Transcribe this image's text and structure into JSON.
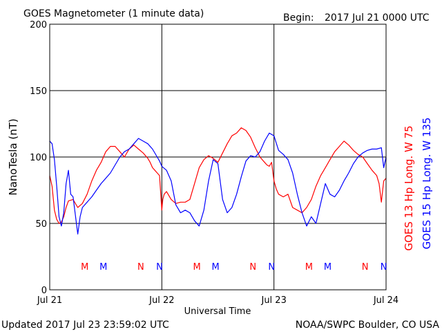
{
  "header": {
    "title": "GOES Magnetometer (1 minute data)",
    "begin_label": "Begin:",
    "begin_value": "2017 Jul 21 0000 UTC"
  },
  "footer": {
    "updated": "Updated 2017 Jul 23 23:59:02 UTC",
    "credit": "NOAA/SWPC Boulder, CO USA"
  },
  "colors": {
    "goes13": "#ff0000",
    "goes15": "#0000ff",
    "axes": "#000000"
  },
  "chart_data": {
    "type": "line",
    "title": "GOES Magnetometer (1 minute data)",
    "xlabel": "Universal Time",
    "ylabel": "NanoTesla (nT)",
    "xlim": [
      0,
      72
    ],
    "ylim": [
      0,
      200
    ],
    "yticks": [
      0,
      50,
      100,
      150,
      200
    ],
    "x_ticks": [
      {
        "x": 0,
        "label": "Jul 21"
      },
      {
        "x": 24,
        "label": "Jul 22"
      },
      {
        "x": 48,
        "label": "Jul 23"
      },
      {
        "x": 72,
        "label": "Jul 24"
      }
    ],
    "x_unit": "hours since 2017 Jul 21 0000 UTC",
    "grid": true,
    "legend_position": "right, vertical",
    "series": [
      {
        "name": "GOES 13 Hp",
        "legend_label": "GOES 13 Hp  Long. W 75",
        "color": "#ff0000",
        "x": [
          0,
          0.5,
          1,
          1.5,
          2,
          2.5,
          3,
          3.5,
          4,
          5,
          6,
          7,
          8,
          9,
          10,
          11,
          12,
          13,
          14,
          15,
          16,
          17,
          18,
          19,
          20,
          21,
          21.5,
          22,
          22.5,
          23,
          23.5,
          24,
          24.2,
          24.5,
          25,
          26,
          27,
          28,
          29,
          30,
          31,
          32,
          33,
          34,
          35,
          36,
          37,
          38,
          39,
          40,
          41,
          42,
          43,
          44,
          45,
          46,
          46.5,
          47,
          47.5,
          48,
          48.5,
          49,
          50,
          51,
          52,
          53,
          54,
          55,
          56,
          57,
          58,
          59,
          60,
          61,
          62,
          63,
          64,
          65,
          66,
          67,
          68,
          69,
          70,
          70.5,
          71,
          71.5,
          72
        ],
        "y": [
          86,
          78,
          60,
          53,
          50,
          51,
          55,
          62,
          67,
          68,
          62,
          65,
          72,
          82,
          90,
          96,
          104,
          108,
          108,
          104,
          100,
          106,
          109,
          106,
          103,
          99,
          96,
          92,
          90,
          88,
          86,
          60,
          68,
          72,
          74,
          68,
          65,
          66,
          66,
          68,
          80,
          92,
          98,
          101,
          99,
          96,
          103,
          110,
          116,
          118,
          122,
          120,
          115,
          107,
          100,
          96,
          94,
          93,
          96,
          82,
          76,
          72,
          70,
          72,
          62,
          60,
          58,
          62,
          68,
          78,
          86,
          92,
          98,
          104,
          108,
          112,
          109,
          105,
          102,
          100,
          95,
          90,
          86,
          80,
          66,
          82,
          84
        ]
      },
      {
        "name": "GOES 15 Hp",
        "legend_label": "GOES 15 Hp  Long. W 135",
        "color": "#0000ff",
        "x": [
          0,
          0.5,
          1,
          1.5,
          2,
          2.5,
          3,
          3.5,
          4,
          4.5,
          5,
          5.5,
          6,
          6.5,
          7,
          8,
          9,
          10,
          11,
          12,
          13,
          14,
          15,
          16,
          17,
          18,
          19,
          20,
          21,
          22,
          23,
          23.5,
          24,
          25,
          26,
          27,
          28,
          29,
          30,
          31,
          32,
          33,
          34,
          35,
          36,
          37,
          38,
          39,
          40,
          41,
          42,
          43,
          44,
          45,
          46,
          47,
          48,
          49,
          50,
          51,
          52,
          53,
          54,
          55,
          56,
          57,
          58,
          59,
          60,
          61,
          62,
          63,
          64,
          65,
          66,
          67,
          68,
          69,
          70,
          71,
          71.5,
          72
        ],
        "y": [
          112,
          110,
          98,
          78,
          55,
          48,
          58,
          80,
          90,
          72,
          70,
          56,
          42,
          55,
          62,
          66,
          70,
          75,
          80,
          84,
          88,
          94,
          100,
          104,
          106,
          110,
          114,
          112,
          110,
          106,
          100,
          97,
          93,
          90,
          82,
          64,
          58,
          60,
          58,
          52,
          48,
          60,
          82,
          98,
          95,
          68,
          58,
          62,
          72,
          85,
          97,
          101,
          100,
          104,
          112,
          118,
          116,
          105,
          102,
          98,
          88,
          72,
          58,
          48,
          55,
          50,
          65,
          80,
          72,
          70,
          75,
          82,
          88,
          95,
          100,
          103,
          105,
          106,
          106,
          107,
          92,
          100
        ]
      }
    ],
    "annotations": [
      {
        "x": 7.5,
        "label": "M",
        "series": "GOES 13 Hp"
      },
      {
        "x": 19.5,
        "label": "N",
        "series": "GOES 13 Hp"
      },
      {
        "x": 11.5,
        "label": "M",
        "series": "GOES 15 Hp"
      },
      {
        "x": 23.5,
        "label": "N",
        "series": "GOES 15 Hp"
      },
      {
        "x": 31.5,
        "label": "M",
        "series": "GOES 13 Hp"
      },
      {
        "x": 43.5,
        "label": "N",
        "series": "GOES 13 Hp"
      },
      {
        "x": 35.5,
        "label": "M",
        "series": "GOES 15 Hp"
      },
      {
        "x": 47.5,
        "label": "N",
        "series": "GOES 15 Hp"
      },
      {
        "x": 55.5,
        "label": "M",
        "series": "GOES 13 Hp"
      },
      {
        "x": 67.5,
        "label": "N",
        "series": "GOES 13 Hp"
      },
      {
        "x": 59.5,
        "label": "M",
        "series": "GOES 15 Hp"
      },
      {
        "x": 71.5,
        "label": "N",
        "series": "GOES 15 Hp"
      }
    ]
  }
}
